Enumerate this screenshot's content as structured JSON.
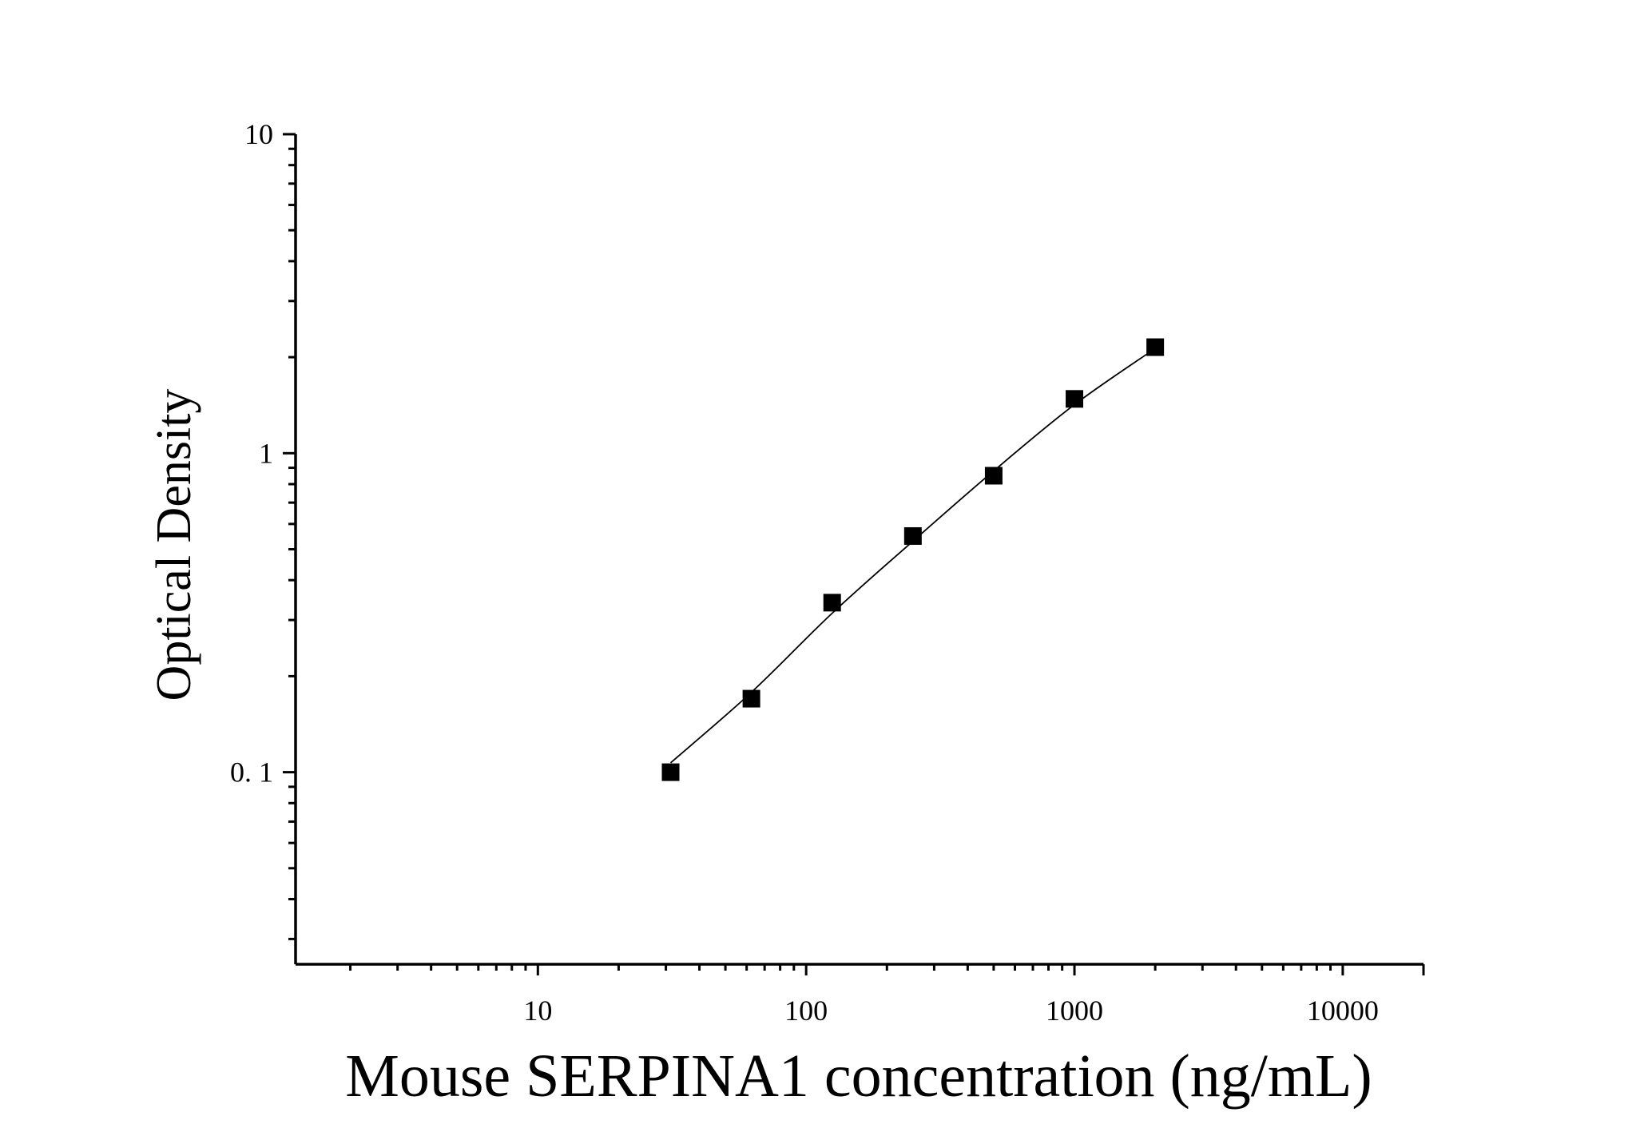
{
  "chart_data": {
    "type": "scatter",
    "title": "",
    "xlabel": "Mouse SERPINA1 concentration (ng/mL)",
    "ylabel": "Optical Density",
    "x_scale": "log",
    "y_scale": "log",
    "xlim": [
      1.25,
      20000
    ],
    "ylim": [
      0.025,
      10
    ],
    "x_ticks": [
      {
        "value": 10,
        "label": "10"
      },
      {
        "value": 100,
        "label": "100"
      },
      {
        "value": 1000,
        "label": "1000"
      },
      {
        "value": 10000,
        "label": "10000"
      }
    ],
    "y_ticks": [
      {
        "value": 0.1,
        "label": "0. 1"
      },
      {
        "value": 1,
        "label": "1"
      },
      {
        "value": 10,
        "label": "10"
      }
    ],
    "grid": false,
    "legend": "none",
    "series": [
      {
        "marker": "square",
        "color": "#000000",
        "x": [
          31.25,
          62.5,
          125,
          250,
          500,
          1000,
          2000
        ],
        "y": [
          0.1,
          0.17,
          0.34,
          0.55,
          0.85,
          1.48,
          2.15
        ]
      }
    ],
    "fit_curve": {
      "style": "line",
      "color": "#000000",
      "x": [
        31.25,
        62.5,
        125,
        250,
        500,
        1000,
        2000
      ],
      "y": [
        0.107,
        0.178,
        0.315,
        0.53,
        0.88,
        1.42,
        2.13
      ]
    }
  }
}
